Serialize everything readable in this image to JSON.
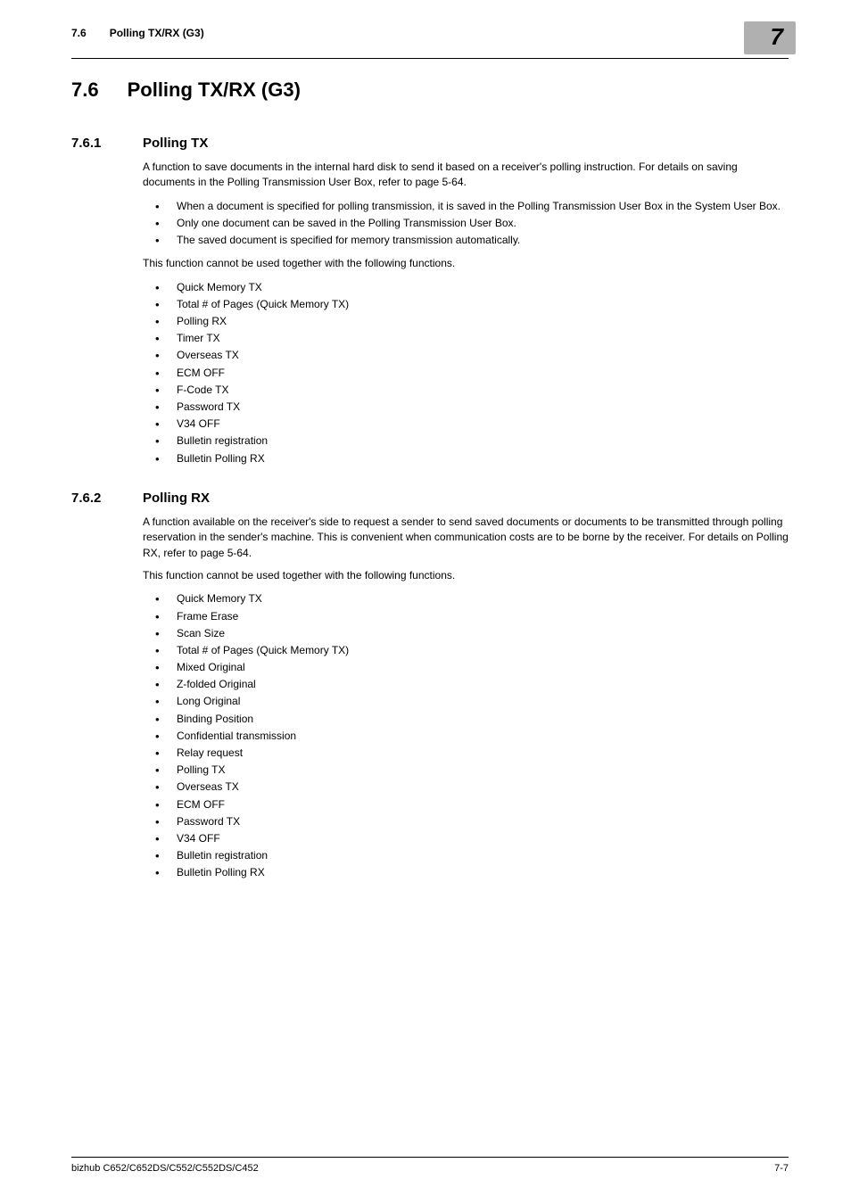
{
  "header": {
    "section_num": "7.6",
    "section_title": "Polling TX/RX (G3)",
    "chapter_badge": "7"
  },
  "h1": {
    "num": "7.6",
    "title": "Polling TX/RX (G3)"
  },
  "sec1": {
    "num": "7.6.1",
    "title": "Polling TX",
    "intro": "A function to save documents in the internal hard disk to send it based on a receiver's polling instruction. For details on saving documents in the Polling Transmission User Box, refer to page 5-64.",
    "notes": [
      "When a document is specified for polling transmission, it is saved in the Polling Transmission User Box in the System User Box.",
      "Only one document can be saved in the Polling Transmission User Box.",
      "The saved document is specified for memory transmission automatically."
    ],
    "restrict_intro": "This function cannot be used together with the following functions.",
    "restrict": [
      "Quick Memory TX",
      "Total # of Pages (Quick Memory TX)",
      "Polling RX",
      "Timer TX",
      "Overseas TX",
      "ECM OFF",
      "F-Code TX",
      "Password TX",
      "V34 OFF",
      "Bulletin registration",
      "Bulletin Polling RX"
    ]
  },
  "sec2": {
    "num": "7.6.2",
    "title": "Polling RX",
    "intro": "A function available on the receiver's side to request a sender to send saved documents or documents to be transmitted through polling reservation in the sender's machine. This is convenient when communication costs are to be borne by the receiver. For details on Polling RX, refer to page 5-64.",
    "restrict_intro": "This function cannot be used together with the following functions.",
    "restrict": [
      "Quick Memory TX",
      "Frame Erase",
      "Scan Size",
      "Total # of Pages (Quick Memory TX)",
      "Mixed Original",
      "Z-folded Original",
      "Long Original",
      "Binding Position",
      "Confidential transmission",
      "Relay request",
      "Polling TX",
      "Overseas TX",
      "ECM OFF",
      "Password TX",
      "V34 OFF",
      "Bulletin registration",
      "Bulletin Polling RX"
    ]
  },
  "footer": {
    "left": "bizhub C652/C652DS/C552/C552DS/C452",
    "right": "7-7"
  }
}
